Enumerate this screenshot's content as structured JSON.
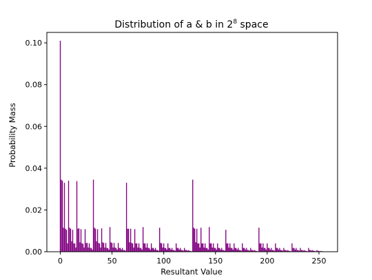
{
  "chart_data": {
    "type": "bar",
    "title": "Distribution of a & b in 2",
    "title_superscript": "8",
    "title_suffix": " space",
    "xlabel": "Resultant Value",
    "ylabel": "Probability Mass",
    "xlim": [
      -13,
      268
    ],
    "ylim": [
      0,
      0.105
    ],
    "x_ticks": [
      0,
      50,
      100,
      150,
      200,
      250
    ],
    "x_tick_labels": [
      "0",
      "50",
      "100",
      "150",
      "200",
      "250"
    ],
    "y_ticks": [
      0.0,
      0.02,
      0.04,
      0.06,
      0.08,
      0.1
    ],
    "y_tick_labels": [
      "0.00",
      "0.02",
      "0.04",
      "0.06",
      "0.08",
      "0.10"
    ],
    "grid": false,
    "bar_color": "#800080",
    "peaks": [
      {
        "x": 0,
        "y": 0.101
      },
      {
        "x": 1,
        "y": 0.0345
      },
      {
        "x": 2,
        "y": 0.034
      },
      {
        "x": 4,
        "y": 0.033
      },
      {
        "x": 8,
        "y": 0.034
      },
      {
        "x": 16,
        "y": 0.0338
      },
      {
        "x": 32,
        "y": 0.0345
      },
      {
        "x": 64,
        "y": 0.033
      },
      {
        "x": 128,
        "y": 0.0345
      }
    ],
    "values": [
      0.101,
      0.0345,
      0.034,
      0.0115,
      0.033,
      0.011,
      0.0105,
      0.004,
      0.034,
      0.0115,
      0.011,
      0.005,
      0.0105,
      0.004,
      0.004,
      0.002,
      0.0338,
      0.011,
      0.0112,
      0.0045,
      0.0108,
      0.004,
      0.0038,
      0.002,
      0.0108,
      0.0042,
      0.0042,
      0.002,
      0.004,
      0.0018,
      0.0018,
      0.001,
      0.0345,
      0.0115,
      0.011,
      0.005,
      0.0108,
      0.0042,
      0.004,
      0.002,
      0.0112,
      0.0045,
      0.0042,
      0.002,
      0.0042,
      0.0018,
      0.0018,
      0.001,
      0.0118,
      0.0045,
      0.0042,
      0.002,
      0.0042,
      0.002,
      0.0018,
      0.001,
      0.0042,
      0.0018,
      0.0018,
      0.001,
      0.0018,
      0.0008,
      0.0008,
      0.0005,
      0.033,
      0.011,
      0.011,
      0.0045,
      0.011,
      0.0042,
      0.004,
      0.002,
      0.0108,
      0.004,
      0.004,
      0.002,
      0.004,
      0.0018,
      0.0018,
      0.001,
      0.0118,
      0.004,
      0.004,
      0.002,
      0.004,
      0.0018,
      0.0018,
      0.001,
      0.004,
      0.0018,
      0.0018,
      0.001,
      0.0018,
      0.0008,
      0.0008,
      0.0005,
      0.0115,
      0.0042,
      0.004,
      0.002,
      0.004,
      0.0018,
      0.0018,
      0.001,
      0.004,
      0.0018,
      0.0018,
      0.001,
      0.0018,
      0.0008,
      0.0008,
      0.0005,
      0.004,
      0.0018,
      0.0018,
      0.001,
      0.0018,
      0.0008,
      0.0008,
      0.0005,
      0.0018,
      0.0008,
      0.0008,
      0.0005,
      0.0008,
      0.0004,
      0.0004,
      0.0002,
      0.0345,
      0.0115,
      0.011,
      0.0045,
      0.011,
      0.004,
      0.004,
      0.002,
      0.0115,
      0.004,
      0.004,
      0.002,
      0.004,
      0.0018,
      0.0018,
      0.001,
      0.0118,
      0.004,
      0.004,
      0.002,
      0.004,
      0.0018,
      0.0018,
      0.001,
      0.004,
      0.0018,
      0.0018,
      0.001,
      0.0018,
      0.0008,
      0.0008,
      0.0005,
      0.0105,
      0.004,
      0.004,
      0.002,
      0.004,
      0.0018,
      0.0018,
      0.001,
      0.004,
      0.0018,
      0.0018,
      0.001,
      0.0018,
      0.0008,
      0.0008,
      0.0005,
      0.004,
      0.0018,
      0.0018,
      0.001,
      0.0018,
      0.0008,
      0.0008,
      0.0005,
      0.0018,
      0.0008,
      0.0008,
      0.0005,
      0.0008,
      0.0004,
      0.0004,
      0.0002,
      0.0115,
      0.004,
      0.004,
      0.002,
      0.004,
      0.0018,
      0.0018,
      0.001,
      0.004,
      0.0018,
      0.0018,
      0.001,
      0.0018,
      0.0008,
      0.0008,
      0.0005,
      0.004,
      0.0018,
      0.0018,
      0.001,
      0.0018,
      0.0008,
      0.0008,
      0.0005,
      0.0018,
      0.0008,
      0.0008,
      0.0005,
      0.0008,
      0.0004,
      0.0004,
      0.0002,
      0.004,
      0.0018,
      0.0018,
      0.001,
      0.0018,
      0.0008,
      0.0008,
      0.0005,
      0.0018,
      0.0008,
      0.0008,
      0.0005,
      0.0008,
      0.0004,
      0.0004,
      0.0002,
      0.0018,
      0.0008,
      0.0008,
      0.0005,
      0.0008,
      0.0004,
      0.0004,
      0.0002,
      0.0008,
      0.0004,
      0.0004,
      0.0002,
      0.0004,
      0.0002,
      0.0002,
      0.0001
    ]
  }
}
